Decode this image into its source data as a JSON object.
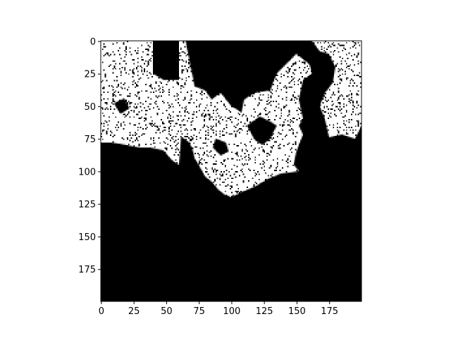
{
  "chart_data": {
    "type": "heatmap",
    "title": "",
    "xlabel": "",
    "ylabel": "",
    "colormap": [
      "#000000",
      "#ffffff"
    ],
    "grid": false,
    "legend": "none",
    "image_size": [
      200,
      200
    ],
    "xlim": [
      0,
      199
    ],
    "ylim": [
      199,
      0
    ],
    "x_ticks": [
      0,
      25,
      50,
      75,
      100,
      125,
      150,
      175
    ],
    "x_tick_labels": [
      "0",
      "25",
      "50",
      "75",
      "100",
      "125",
      "150",
      "175"
    ],
    "y_ticks": [
      0,
      25,
      50,
      75,
      100,
      125,
      150,
      175
    ],
    "y_tick_labels": [
      "0",
      "25",
      "50",
      "75",
      "100",
      "125",
      "150",
      "175"
    ],
    "description_regions": [
      {
        "shape": "polygon",
        "points": [
          [
            0,
            0
          ],
          [
            40,
            0
          ],
          [
            40,
            25
          ],
          [
            48,
            30
          ],
          [
            60,
            30
          ],
          [
            60,
            0
          ],
          [
            65,
            0
          ],
          [
            72,
            35
          ],
          [
            80,
            38
          ],
          [
            85,
            45
          ],
          [
            92,
            40
          ],
          [
            100,
            50
          ],
          [
            108,
            55
          ],
          [
            110,
            45
          ],
          [
            118,
            40
          ],
          [
            130,
            38
          ],
          [
            135,
            25
          ],
          [
            145,
            15
          ],
          [
            150,
            10
          ],
          [
            160,
            18
          ],
          [
            162,
            25
          ],
          [
            155,
            30
          ],
          [
            152,
            45
          ],
          [
            155,
            60
          ],
          [
            152,
            65
          ],
          [
            155,
            72
          ],
          [
            150,
            85
          ],
          [
            148,
            95
          ],
          [
            152,
            100
          ],
          [
            138,
            102
          ],
          [
            128,
            106
          ],
          [
            118,
            112
          ],
          [
            108,
            116
          ],
          [
            100,
            120
          ],
          [
            95,
            118
          ],
          [
            90,
            114
          ],
          [
            85,
            108
          ],
          [
            80,
            104
          ],
          [
            75,
            95
          ],
          [
            72,
            90
          ],
          [
            70,
            82
          ],
          [
            68,
            78
          ],
          [
            60,
            72
          ],
          [
            62,
            68
          ],
          [
            60,
            95
          ],
          [
            55,
            92
          ],
          [
            48,
            84
          ],
          [
            38,
            82
          ],
          [
            30,
            82
          ],
          [
            20,
            80
          ],
          [
            8,
            78
          ],
          [
            0,
            78
          ]
        ]
      },
      {
        "shape": "polygon",
        "points": [
          [
            162,
            0
          ],
          [
            175,
            0
          ],
          [
            180,
            0
          ],
          [
            200,
            0
          ],
          [
            200,
            65
          ],
          [
            195,
            75
          ],
          [
            185,
            72
          ],
          [
            175,
            74
          ],
          [
            172,
            60
          ],
          [
            168,
            50
          ],
          [
            172,
            40
          ],
          [
            178,
            32
          ],
          [
            180,
            20
          ],
          [
            175,
            10
          ],
          [
            168,
            8
          ]
        ]
      }
    ],
    "description_holes": [
      {
        "shape": "polygon",
        "points": [
          [
            112,
            65
          ],
          [
            122,
            58
          ],
          [
            130,
            62
          ],
          [
            135,
            65
          ],
          [
            130,
            75
          ],
          [
            124,
            80
          ],
          [
            118,
            76
          ]
        ]
      },
      {
        "shape": "polygon",
        "points": [
          [
            88,
            75
          ],
          [
            96,
            78
          ],
          [
            98,
            85
          ],
          [
            92,
            88
          ],
          [
            86,
            82
          ]
        ]
      },
      {
        "shape": "polygon",
        "points": [
          [
            10,
            48
          ],
          [
            18,
            44
          ],
          [
            22,
            52
          ],
          [
            15,
            56
          ]
        ]
      }
    ]
  }
}
